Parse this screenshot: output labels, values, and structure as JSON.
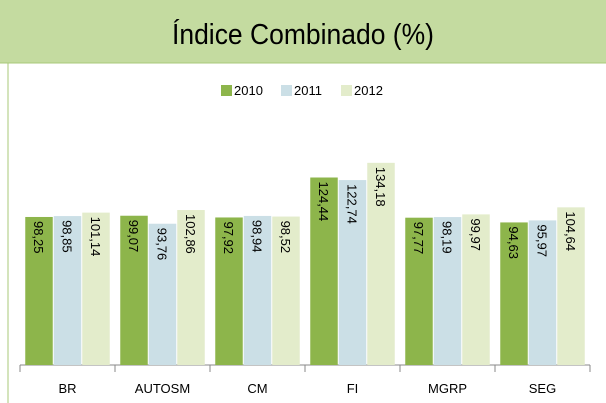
{
  "chart_data": {
    "type": "bar",
    "title": "Índice Combinado (%)",
    "categories": [
      "BR",
      "AUTOSM",
      "CM",
      "FI",
      "MGRP",
      "SEG"
    ],
    "series": [
      {
        "name": "2010",
        "color": "#8db54b",
        "values": [
          98.25,
          99.07,
          97.92,
          124.44,
          97.77,
          94.63
        ],
        "value_labels": [
          "98,25",
          "99,07",
          "97,92",
          "124,44",
          "97,77",
          "94,63"
        ]
      },
      {
        "name": "2011",
        "color": "#cbdfe6",
        "values": [
          98.85,
          93.76,
          98.94,
          122.74,
          98.19,
          95.97
        ],
        "value_labels": [
          "98,85",
          "93,76",
          "98,94",
          "122,74",
          "98,19",
          "95,97"
        ]
      },
      {
        "name": "2012",
        "color": "#e3eccb",
        "values": [
          101.14,
          102.86,
          98.52,
          134.18,
          99.97,
          104.64
        ],
        "value_labels": [
          "101,14",
          "102,86",
          "98,52",
          "134,18",
          "99,97",
          "104,64"
        ]
      }
    ],
    "ylim": [
      0,
      150
    ],
    "legend": "top"
  }
}
